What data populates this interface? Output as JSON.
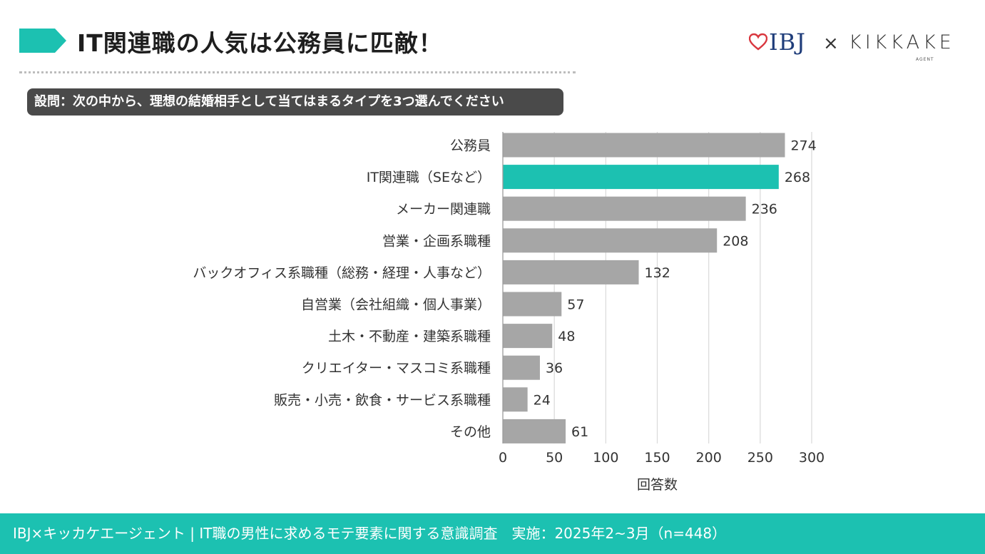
{
  "header": {
    "title": "IT関連職の人気は公務員に匹敵！",
    "logo_ibj": "IBJ",
    "logo_times": "×",
    "logo_kikkake": "KIKKAKE",
    "logo_kikkake_sub": "AGENT"
  },
  "question": {
    "text": "設問：次の中から、理想の結婚相手として当てはまるタイプを3つ選んでください"
  },
  "footer": {
    "text": "IBJ×キッカケエージェント | IT職の男性に求めるモテ要素に関する意識調査　実施：2025年2~3月（n=448）"
  },
  "colors": {
    "accent": "#1cc1b1",
    "bar": "#a6a6a6",
    "highlight_bar": "#1cc1b1",
    "question_bg": "#4a4a4a",
    "grid": "#d9d9d9"
  },
  "chart_data": {
    "type": "bar",
    "orientation": "horizontal",
    "categories": [
      "公務員",
      "IT関連職（SEなど）",
      "メーカー関連職",
      "営業・企画系職種",
      "バックオフィス系職種（総務・経理・人事など）",
      "自営業（会社組織・個人事業）",
      "土木・不動産・建築系職種",
      "クリエイター・マスコミ系職種",
      "販売・小売・飲食・サービス系職種",
      "その他"
    ],
    "values": [
      274,
      268,
      236,
      208,
      132,
      57,
      48,
      36,
      24,
      61
    ],
    "highlight": "IT関連職（SEなど）",
    "xlabel": "回答数",
    "ylabel": "",
    "xlim": [
      0,
      300
    ],
    "xticks": [
      0,
      50,
      100,
      150,
      200,
      250,
      300
    ],
    "grid": true,
    "data_labels": true
  }
}
